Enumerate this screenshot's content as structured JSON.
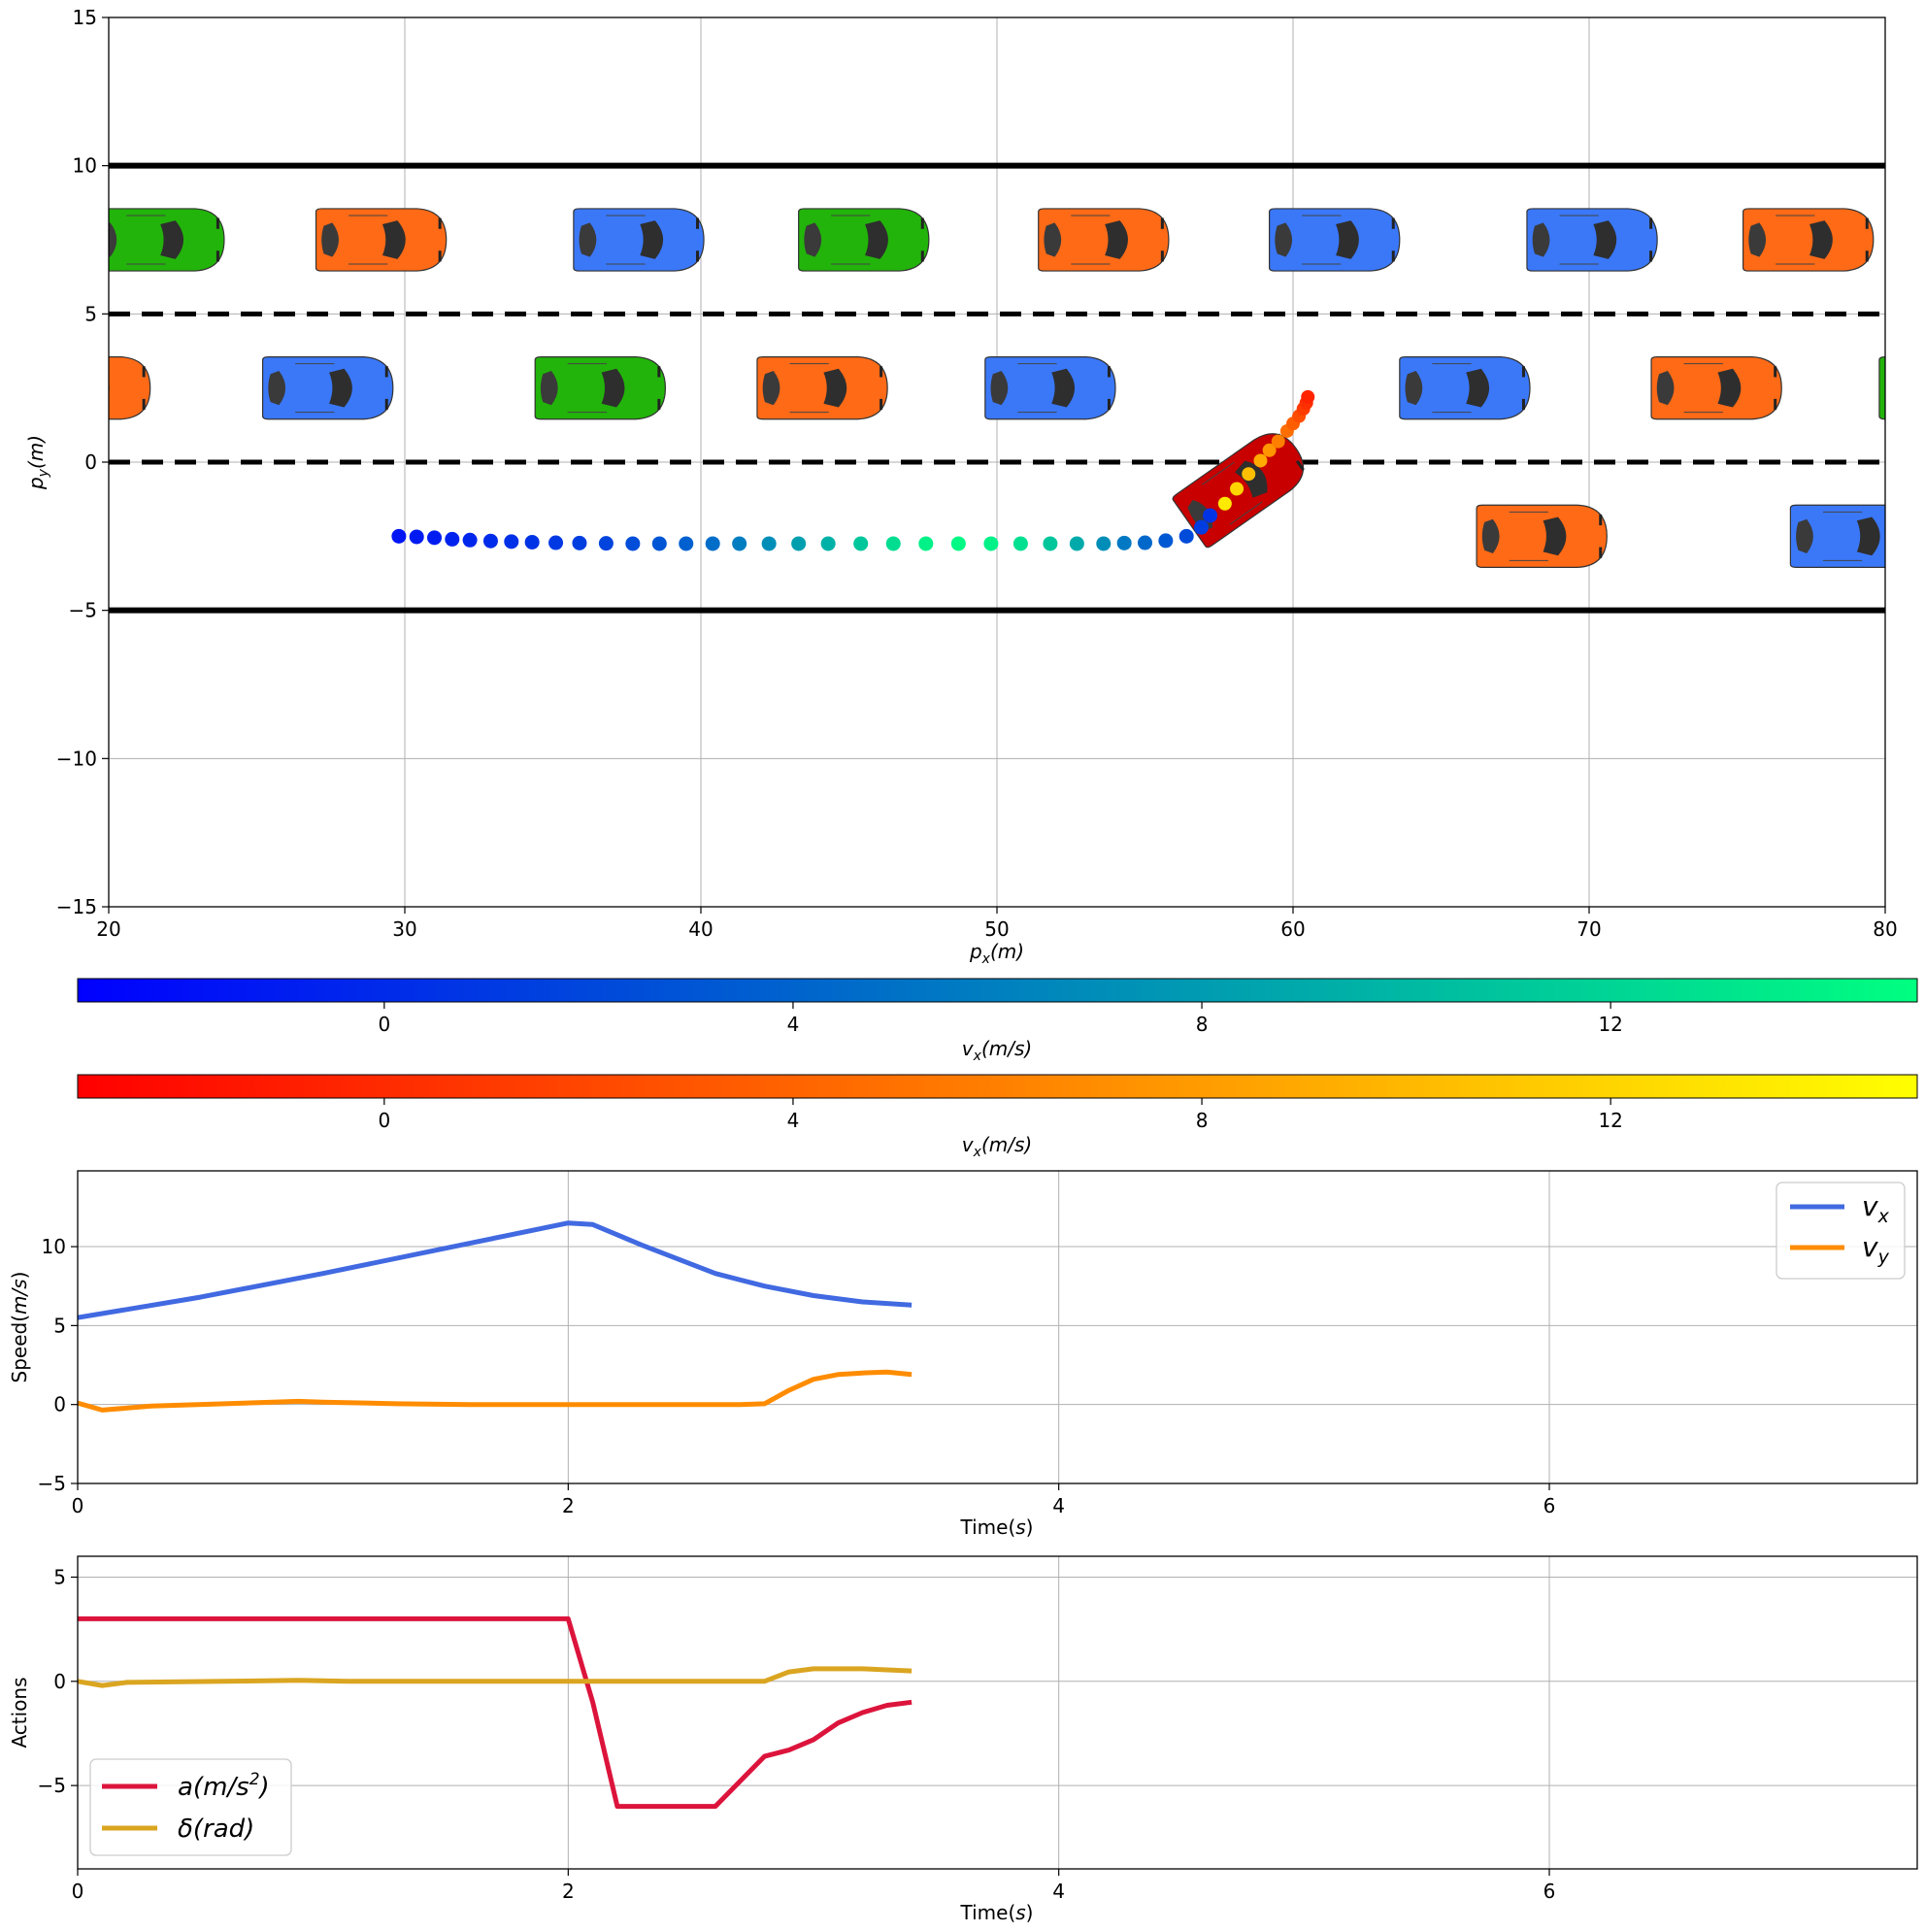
{
  "chart_data": [
    {
      "type": "scatter",
      "panel": "road",
      "xlabel_base": "p",
      "xlabel_sub": "x",
      "xlabel_unit": "(m)",
      "ylabel_base": "p",
      "ylabel_sub": "y",
      "ylabel_unit": "(m)",
      "xlim": [
        20,
        80
      ],
      "ylim": [
        -15,
        15
      ],
      "xticks": [
        20,
        30,
        40,
        50,
        60,
        70,
        80
      ],
      "yticks": [
        -15,
        -10,
        -5,
        0,
        5,
        10,
        15
      ],
      "ytick_labels": [
        "−15",
        "−10",
        "−5",
        "0",
        "5",
        "10",
        "15"
      ],
      "grid": true,
      "road_boundaries_y": [
        10,
        -5
      ],
      "lane_markings_y": [
        5,
        0
      ],
      "vehicle_colors": {
        "green": "#22b40a",
        "orange": "#ff6a16",
        "blue": "#3a78f8",
        "ego": "#c80000"
      },
      "vehicles": [
        {
          "color": "green",
          "x": 21.7,
          "y": 7.5
        },
        {
          "color": "orange",
          "x": 29.2,
          "y": 7.5
        },
        {
          "color": "blue",
          "x": 37.9,
          "y": 7.5
        },
        {
          "color": "green",
          "x": 45.5,
          "y": 7.5
        },
        {
          "color": "orange",
          "x": 53.6,
          "y": 7.5
        },
        {
          "color": "blue",
          "x": 61.4,
          "y": 7.5
        },
        {
          "color": "blue",
          "x": 70.1,
          "y": 7.5
        },
        {
          "color": "orange",
          "x": 77.4,
          "y": 7.5
        },
        {
          "color": "orange",
          "x": 19.2,
          "y": 2.5
        },
        {
          "color": "blue",
          "x": 27.4,
          "y": 2.5
        },
        {
          "color": "green",
          "x": 36.6,
          "y": 2.5
        },
        {
          "color": "orange",
          "x": 44.1,
          "y": 2.5
        },
        {
          "color": "blue",
          "x": 51.8,
          "y": 2.5
        },
        {
          "color": "blue",
          "x": 65.8,
          "y": 2.5
        },
        {
          "color": "orange",
          "x": 74.3,
          "y": 2.5
        },
        {
          "color": "green",
          "x": 82.0,
          "y": 2.5
        },
        {
          "color": "orange",
          "x": 68.4,
          "y": -2.5
        },
        {
          "color": "blue",
          "x": 79.0,
          "y": -2.5
        }
      ],
      "ego": {
        "x": 58.3,
        "y": -0.8,
        "heading_deg": 35
      },
      "history_points": [
        {
          "x": 29.8,
          "y": -2.5,
          "vx": -1.5
        },
        {
          "x": 30.4,
          "y": -2.52,
          "vx": -1.2
        },
        {
          "x": 31.0,
          "y": -2.55,
          "vx": -1.0
        },
        {
          "x": 31.6,
          "y": -2.6,
          "vx": -0.6
        },
        {
          "x": 32.2,
          "y": -2.63,
          "vx": -0.3
        },
        {
          "x": 32.9,
          "y": -2.66,
          "vx": 0.0
        },
        {
          "x": 33.6,
          "y": -2.68,
          "vx": 0.3
        },
        {
          "x": 34.3,
          "y": -2.7,
          "vx": 0.6
        },
        {
          "x": 35.1,
          "y": -2.72,
          "vx": 1.0
        },
        {
          "x": 35.9,
          "y": -2.73,
          "vx": 1.4
        },
        {
          "x": 36.8,
          "y": -2.74,
          "vx": 1.8
        },
        {
          "x": 37.7,
          "y": -2.75,
          "vx": 2.4
        },
        {
          "x": 38.6,
          "y": -2.75,
          "vx": 3.0
        },
        {
          "x": 39.5,
          "y": -2.75,
          "vx": 3.8
        },
        {
          "x": 40.4,
          "y": -2.75,
          "vx": 4.7
        },
        {
          "x": 41.3,
          "y": -2.75,
          "vx": 5.8
        },
        {
          "x": 42.3,
          "y": -2.75,
          "vx": 7.0
        },
        {
          "x": 43.3,
          "y": -2.75,
          "vx": 8.2
        },
        {
          "x": 44.3,
          "y": -2.75,
          "vx": 9.5
        },
        {
          "x": 45.4,
          "y": -2.75,
          "vx": 11.0
        },
        {
          "x": 46.5,
          "y": -2.75,
          "vx": 12.6
        },
        {
          "x": 47.6,
          "y": -2.75,
          "vx": 14.0
        },
        {
          "x": 48.7,
          "y": -2.75,
          "vx": 14.5
        },
        {
          "x": 49.8,
          "y": -2.75,
          "vx": 14.0
        },
        {
          "x": 50.8,
          "y": -2.75,
          "vx": 12.8
        },
        {
          "x": 51.8,
          "y": -2.75,
          "vx": 11.0
        },
        {
          "x": 52.7,
          "y": -2.75,
          "vx": 9.0
        },
        {
          "x": 53.6,
          "y": -2.75,
          "vx": 7.0
        },
        {
          "x": 54.3,
          "y": -2.73,
          "vx": 5.5
        },
        {
          "x": 55.0,
          "y": -2.72,
          "vx": 4.3
        },
        {
          "x": 55.7,
          "y": -2.65,
          "vx": 3.3
        },
        {
          "x": 56.4,
          "y": -2.5,
          "vx": 2.3
        },
        {
          "x": 56.9,
          "y": -2.2,
          "vx": 1.3
        },
        {
          "x": 57.2,
          "y": -1.8,
          "vx": 0.5
        }
      ],
      "prediction_points": [
        {
          "x": 57.7,
          "y": -1.4,
          "vx": 13.5
        },
        {
          "x": 58.1,
          "y": -0.9,
          "vx": 12.0
        },
        {
          "x": 58.5,
          "y": -0.4,
          "vx": 10.5
        },
        {
          "x": 58.9,
          "y": 0.05,
          "vx": 9.0
        },
        {
          "x": 59.2,
          "y": 0.4,
          "vx": 7.5
        },
        {
          "x": 59.5,
          "y": 0.7,
          "vx": 6.0
        },
        {
          "x": 59.8,
          "y": 1.05,
          "vx": 4.8
        },
        {
          "x": 60.0,
          "y": 1.3,
          "vx": 3.6
        },
        {
          "x": 60.2,
          "y": 1.55,
          "vx": 2.4
        },
        {
          "x": 60.35,
          "y": 1.8,
          "vx": 1.2
        },
        {
          "x": 60.45,
          "y": 2.0,
          "vx": 0.3
        },
        {
          "x": 60.5,
          "y": 2.2,
          "vx": -0.5
        }
      ]
    },
    {
      "type": "colorbar",
      "panel": "history-colorbar",
      "colormap": "winter",
      "range": [
        -3,
        15
      ],
      "ticks": [
        0,
        4,
        8,
        12
      ],
      "label_base": "v",
      "label_sub": "x",
      "label_unit": "(m/s)"
    },
    {
      "type": "colorbar",
      "panel": "prediction-colorbar",
      "colormap": "autumn",
      "range": [
        -3,
        15
      ],
      "ticks": [
        0,
        4,
        8,
        12
      ],
      "label_base": "v",
      "label_sub": "x",
      "label_unit": "(m/s)"
    },
    {
      "type": "line",
      "panel": "speed",
      "xlabel": "Time(",
      "xlabel_italic": "s",
      "xlabel_close": ")",
      "ylabel": "Speed(",
      "ylabel_italic": "m/s",
      "ylabel_close": ")",
      "xlim": [
        0,
        7.5
      ],
      "ylim": [
        -5,
        14.8
      ],
      "xticks": [
        0,
        2,
        4,
        6
      ],
      "yticks": [
        -5,
        0,
        5,
        10
      ],
      "ytick_labels": [
        "−5",
        "0",
        "5",
        "10"
      ],
      "grid": true,
      "legend_position": "top-right",
      "series": [
        {
          "name": "v",
          "name_sub": "x",
          "color": "#4169e1",
          "x": [
            0,
            0.5,
            1.0,
            1.5,
            2.0,
            2.1,
            2.3,
            2.6,
            2.8,
            3.0,
            3.2,
            3.4
          ],
          "y": [
            5.5,
            6.8,
            8.3,
            9.9,
            11.5,
            11.4,
            10.1,
            8.3,
            7.5,
            6.9,
            6.5,
            6.3
          ]
        },
        {
          "name": "v",
          "name_sub": "y",
          "color": "#ff8c00",
          "x": [
            0,
            0.1,
            0.3,
            0.6,
            0.9,
            1.0,
            1.3,
            1.6,
            2.0,
            2.4,
            2.7,
            2.8,
            2.9,
            3.0,
            3.1,
            3.2,
            3.3,
            3.4
          ],
          "y": [
            0.1,
            -0.35,
            -0.1,
            0.05,
            0.2,
            0.15,
            0.05,
            0.0,
            0.0,
            0.0,
            0.0,
            0.05,
            0.9,
            1.6,
            1.9,
            2.0,
            2.05,
            1.9
          ]
        }
      ]
    },
    {
      "type": "line",
      "panel": "actions",
      "xlabel": "Time(",
      "xlabel_italic": "s",
      "xlabel_close": ")",
      "ylabel": "Actions",
      "xlim": [
        0,
        7.5
      ],
      "ylim": [
        -9,
        6
      ],
      "xticks": [
        0,
        2,
        4,
        6
      ],
      "yticks": [
        -5,
        0,
        5
      ],
      "ytick_labels": [
        "−5",
        "0",
        "5"
      ],
      "grid": true,
      "legend_position": "bottom-left",
      "series": [
        {
          "name": "a(m/s",
          "name_sup": "2",
          "name_close": ")",
          "color": "#dc143c",
          "x": [
            0,
            2.0,
            2.1,
            2.2,
            2.6,
            2.8,
            2.9,
            3.0,
            3.1,
            3.2,
            3.3,
            3.4
          ],
          "y": [
            3.0,
            3.0,
            -1.0,
            -6.0,
            -6.0,
            -3.6,
            -3.3,
            -2.8,
            -2.0,
            -1.5,
            -1.15,
            -1.0
          ]
        },
        {
          "name": "δ(rad)",
          "color": "#daa520",
          "x": [
            0,
            0.1,
            0.2,
            0.6,
            0.9,
            1.1,
            1.5,
            2.0,
            2.5,
            2.8,
            2.9,
            3.0,
            3.2,
            3.4
          ],
          "y": [
            0.0,
            -0.2,
            -0.05,
            0.0,
            0.05,
            0.0,
            0.0,
            0.0,
            0.0,
            0.0,
            0.45,
            0.6,
            0.6,
            0.5
          ]
        }
      ]
    }
  ]
}
